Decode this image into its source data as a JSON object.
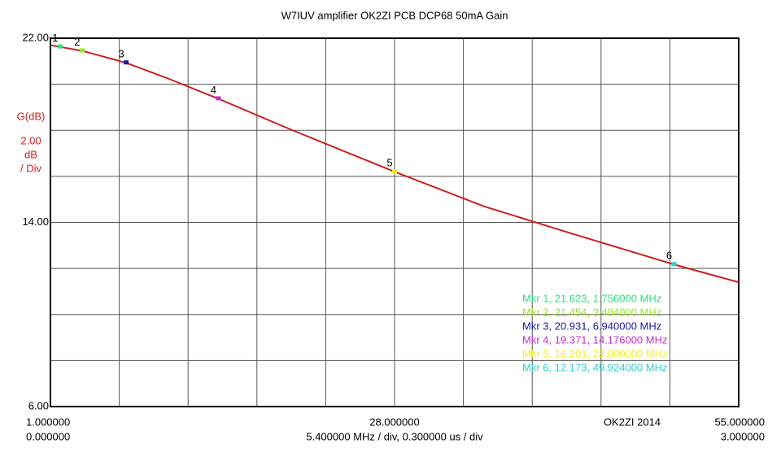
{
  "chart_data": {
    "type": "line",
    "title": "W7IUV amplifier OK2ZI PCB DCP68 50mA Gain",
    "y_axis_label": "G(dB)",
    "y_scale_lines": [
      "2.00",
      "dB",
      "/ Div"
    ],
    "x_axis_label": "5.400000 MHz / div, 0.300000 us / div",
    "credit": "OK2ZI 2014",
    "xlim": [
      1,
      55
    ],
    "ylim": [
      6,
      22
    ],
    "xticks": [
      {
        "value": 1,
        "label": "1.000000"
      },
      {
        "value": 28,
        "label": "28.000000"
      },
      {
        "value": 55,
        "label": "55.000000"
      }
    ],
    "x2ticks": [
      {
        "value": 1,
        "label": "0.000000"
      },
      {
        "value": 55,
        "label": "3.000000"
      }
    ],
    "yticks": [
      {
        "value": 6,
        "label": "6.00"
      },
      {
        "value": 14,
        "label": "14.00"
      },
      {
        "value": 22,
        "label": "22.00"
      }
    ],
    "xgrid": [
      6.4,
      11.8,
      17.2,
      22.6,
      33.4,
      38.8,
      44.2,
      49.6
    ],
    "ygrid": [
      8,
      10,
      12,
      16,
      18,
      20
    ],
    "grid": true,
    "series": [
      {
        "name": "G(dB)",
        "color": "#cc2020",
        "x": [
          1,
          1.756,
          3.484,
          6.94,
          10,
          14.176,
          20,
          28,
          35,
          42,
          49.924,
          55
        ],
        "values": [
          21.7,
          21.623,
          21.454,
          20.931,
          20.3,
          19.371,
          18.0,
          16.201,
          14.7,
          13.5,
          12.173,
          11.4
        ]
      }
    ],
    "markers": {
      "labels": [
        "1",
        "2",
        "3",
        "4",
        "5",
        "6"
      ],
      "x": [
        1.756,
        3.484,
        6.94,
        14.176,
        28,
        49.924
      ],
      "values": [
        21.623,
        21.454,
        20.931,
        19.371,
        16.201,
        12.173
      ],
      "legend": [
        "Mkr 1, 21.623, 1.756000 MHz",
        "Mkr 2, 21.454, 3.484000 MHz",
        "Mkr 3, 20.931, 6.940000 MHz",
        "Mkr 4, 19.371, 14.176000 MHz",
        "Mkr 5, 16.201, 28.000000 MHz",
        "Mkr 6, 12.173, 49.924000 MHz"
      ],
      "colors": [
        "#2ee080",
        "#99e620",
        "#1a1aa0",
        "#c030c8",
        "#f0f020",
        "#30d0d0"
      ]
    }
  }
}
